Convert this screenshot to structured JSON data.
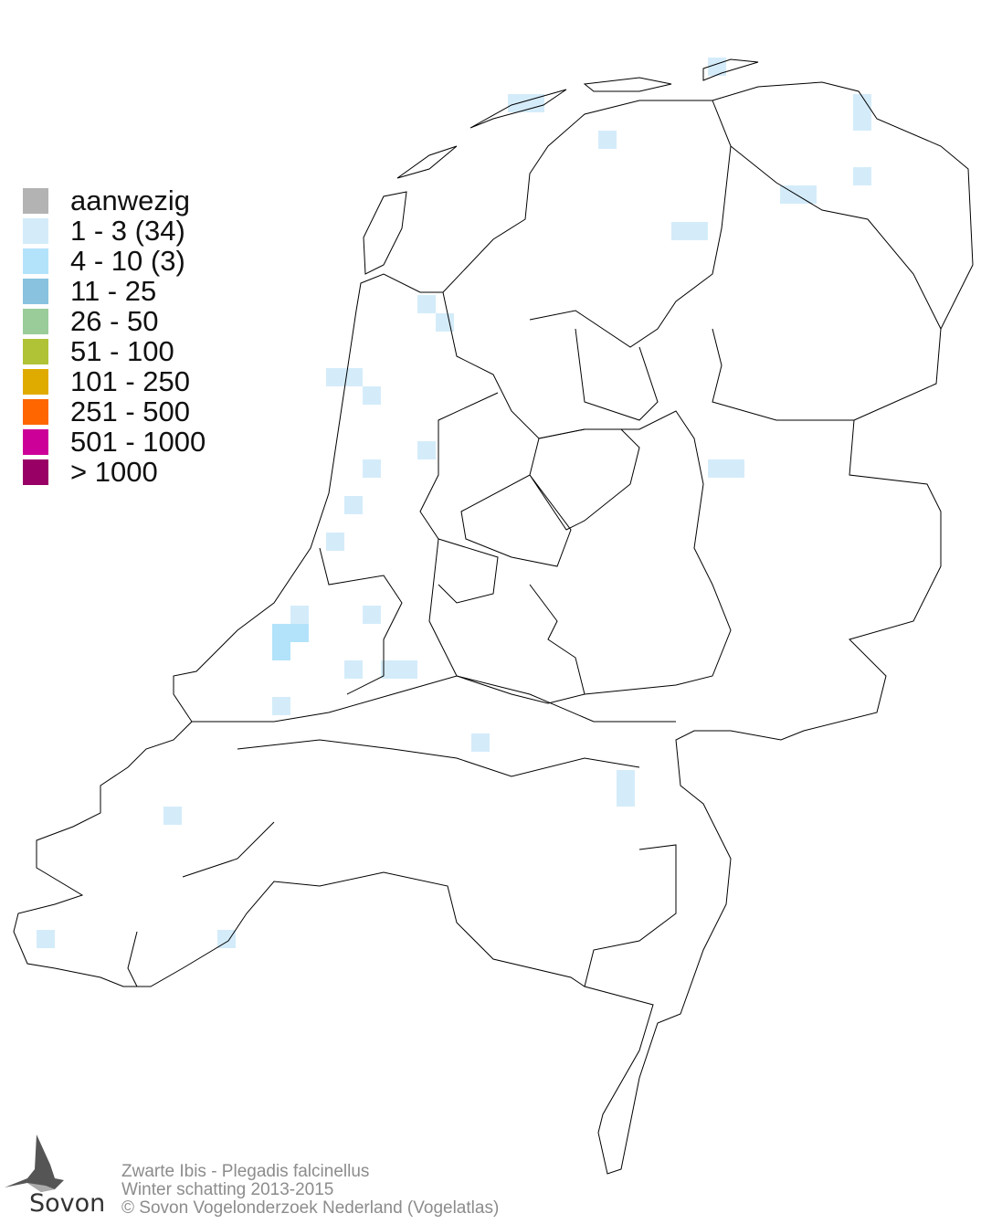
{
  "map": {
    "legend": [
      {
        "label": "aanwezig",
        "color": "#b3b3b3"
      },
      {
        "label": "1 - 3 (34)",
        "color": "#d4ecfa"
      },
      {
        "label": "4 - 10 (3)",
        "color": "#b3e3fa"
      },
      {
        "label": "11 - 25",
        "color": "#88c2df"
      },
      {
        "label": "26 - 50",
        "color": "#99cc99"
      },
      {
        "label": "51 - 100",
        "color": "#b0c236"
      },
      {
        "label": "101 - 250",
        "color": "#e0ab00"
      },
      {
        "label": "251 - 500",
        "color": "#ff6600"
      },
      {
        "label": "501 - 1000",
        "color": "#cc0099"
      },
      {
        "label": "> 1000",
        "color": "#990066"
      }
    ]
  },
  "footer": {
    "species": "Zwarte Ibis - Plegadis falcinellus",
    "period": "Winter schatting 2013-2015",
    "copyright": "© Sovon Vogelonderzoek Nederland (Vogelatlas)"
  },
  "logo": {
    "text": "Sovon"
  }
}
